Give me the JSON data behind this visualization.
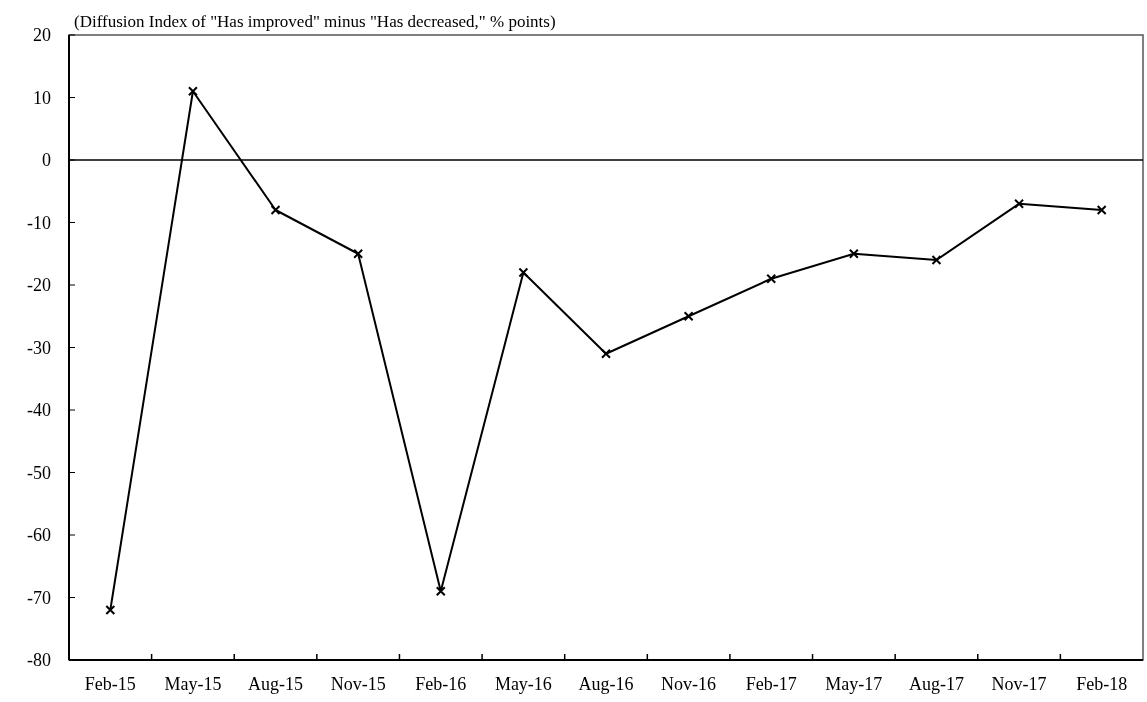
{
  "chart_data": {
    "type": "line",
    "ylabel": "(Diffusion Index of \"Has improved\" minus \"Has decreased,\" % points)",
    "categories": [
      "Feb-15",
      "May-15",
      "Aug-15",
      "Nov-15",
      "Feb-16",
      "May-16",
      "Aug-16",
      "Nov-16",
      "Feb-17",
      "May-17",
      "Aug-17",
      "Nov-17",
      "Feb-18"
    ],
    "series": [
      {
        "color": "#000000",
        "values": [
          -72,
          11,
          -8,
          -15,
          -69,
          -18,
          -31,
          -25,
          -19,
          -15,
          -16,
          -7,
          -8
        ]
      }
    ],
    "ylim": [
      -80,
      20
    ],
    "yticks": [
      -80,
      -70,
      -60,
      -50,
      -40,
      -30,
      -20,
      -10,
      0,
      10,
      20
    ],
    "ref_lines": [
      {
        "axis": "y",
        "value": 0,
        "color": "#000000"
      }
    ],
    "marker": "cross",
    "line_style": "solid"
  }
}
